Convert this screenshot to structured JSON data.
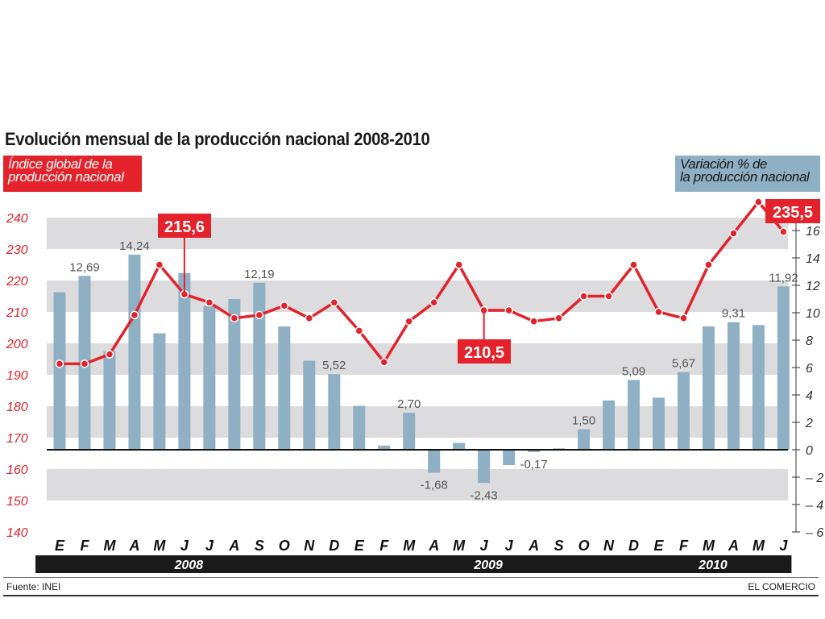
{
  "title": "Evolución mensual de la producción nacional 2008-2010",
  "left_axis_label": [
    "Índice global de la",
    "producción nacional"
  ],
  "right_axis_label": [
    "Variación % de",
    "la producción nacional"
  ],
  "source": "Fuente: INEI",
  "credit": "EL COMERCIO",
  "colors": {
    "line": "#e3222b",
    "bars": "#8fb0c4",
    "band": "#dcdcde",
    "year_bar": "#1a1a1a"
  },
  "chart_data": {
    "type": "bar+line",
    "categories": [
      "E",
      "F",
      "M",
      "A",
      "M",
      "J",
      "J",
      "A",
      "S",
      "O",
      "N",
      "D",
      "E",
      "F",
      "M",
      "A",
      "M",
      "J",
      "J",
      "A",
      "S",
      "O",
      "N",
      "D",
      "E",
      "F",
      "M",
      "A",
      "M",
      "J"
    ],
    "years": [
      {
        "label": "2008",
        "months": 12
      },
      {
        "label": "2009",
        "months": 12
      },
      {
        "label": "2010",
        "months": 6
      }
    ],
    "left_axis": {
      "ticks": [
        "240",
        "230",
        "220",
        "210",
        "200",
        "190",
        "180",
        "170",
        "160",
        "150",
        "140"
      ],
      "ylim": [
        140,
        240
      ]
    },
    "right_axis": {
      "ticks": [
        "16",
        "14",
        "12",
        "10",
        "8",
        "6",
        "4",
        "2",
        "0",
        "-2",
        "-4",
        "-6"
      ],
      "ylim": [
        -6,
        17
      ]
    },
    "series": [
      {
        "type": "bar",
        "axis": "right",
        "values": [
          11.5,
          12.69,
          7.2,
          14.24,
          8.5,
          12.9,
          10.5,
          11.0,
          12.19,
          9.0,
          6.5,
          5.52,
          3.2,
          0.3,
          2.7,
          -1.68,
          0.5,
          -2.43,
          -1.12,
          -0.17,
          0.1,
          1.5,
          3.6,
          5.09,
          3.8,
          5.67,
          9.0,
          9.31,
          9.1,
          11.92
        ],
        "labels": [
          "",
          "12,69",
          "",
          "14,24",
          "",
          "",
          "",
          "",
          "12,19",
          "",
          "",
          "5,52",
          "",
          "",
          "2,70",
          "-1,68",
          "",
          "-2,43",
          "",
          "-0,17",
          "",
          "1,50",
          "",
          "5,09",
          "",
          "5,67",
          "",
          "9,31",
          "",
          "11,92"
        ]
      },
      {
        "type": "line",
        "axis": "left",
        "values": [
          193.5,
          193.5,
          196.5,
          209.0,
          225.0,
          215.6,
          213.0,
          208.0,
          209.0,
          212.0,
          208.0,
          213.0,
          204.0,
          194.0,
          207.0,
          213.0,
          225.0,
          210.5,
          210.5,
          207.0,
          208.0,
          215.0,
          215.0,
          225.0,
          210.0,
          208.0,
          225.0,
          235.0,
          245.0,
          235.5
        ],
        "callouts": [
          {
            "index": 5,
            "label": "215,6"
          },
          {
            "index": 17,
            "label": "210,5"
          },
          {
            "index": 29,
            "label": "235,5"
          }
        ]
      }
    ]
  }
}
